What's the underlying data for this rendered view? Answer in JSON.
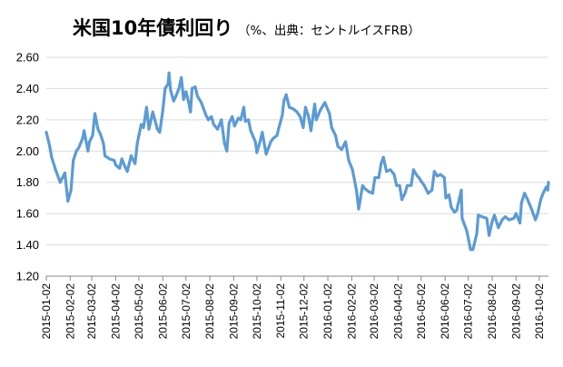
{
  "chart_data": {
    "type": "line",
    "title": "米国10年債利回り",
    "subtitle": "（%、出典：セントルイスFRB）",
    "xlabel": "",
    "ylabel": "",
    "ylim": [
      1.2,
      2.6
    ],
    "yticks": [
      "1.20",
      "1.40",
      "1.60",
      "1.80",
      "2.00",
      "2.20",
      "2.40",
      "2.60"
    ],
    "grid": true,
    "x_start": "2015-01-02",
    "x_end": "2016-10-14",
    "categories": [
      "2015-01-02",
      "2015-02-02",
      "2015-03-02",
      "2015-04-02",
      "2015-05-02",
      "2015-06-02",
      "2015-07-02",
      "2015-08-02",
      "2015-09-02",
      "2015-10-02",
      "2015-11-02",
      "2015-12-02",
      "2016-01-02",
      "2016-02-02",
      "2016-03-02",
      "2016-04-02",
      "2016-05-02",
      "2016-06-02",
      "2016-07-02",
      "2016-08-02",
      "2016-09-02",
      "2016-10-02"
    ],
    "series": [
      {
        "color": "#5b9bd5",
        "points": [
          [
            "2015-01-02",
            2.12
          ],
          [
            "2015-01-06",
            2.04
          ],
          [
            "2015-01-09",
            1.96
          ],
          [
            "2015-01-14",
            1.88
          ],
          [
            "2015-01-20",
            1.8
          ],
          [
            "2015-01-23",
            1.83
          ],
          [
            "2015-01-26",
            1.86
          ],
          [
            "2015-01-30",
            1.68
          ],
          [
            "2015-02-03",
            1.75
          ],
          [
            "2015-02-06",
            1.94
          ],
          [
            "2015-02-10",
            2.0
          ],
          [
            "2015-02-13",
            2.02
          ],
          [
            "2015-02-18",
            2.08
          ],
          [
            "2015-02-20",
            2.13
          ],
          [
            "2015-02-25",
            2.0
          ],
          [
            "2015-02-27",
            2.06
          ],
          [
            "2015-03-03",
            2.1
          ],
          [
            "2015-03-06",
            2.24
          ],
          [
            "2015-03-10",
            2.14
          ],
          [
            "2015-03-13",
            2.11
          ],
          [
            "2015-03-17",
            2.05
          ],
          [
            "2015-03-19",
            1.97
          ],
          [
            "2015-03-25",
            1.95
          ],
          [
            "2015-03-31",
            1.94
          ],
          [
            "2015-04-02",
            1.91
          ],
          [
            "2015-04-07",
            1.89
          ],
          [
            "2015-04-10",
            1.95
          ],
          [
            "2015-04-14",
            1.9
          ],
          [
            "2015-04-17",
            1.87
          ],
          [
            "2015-04-22",
            1.97
          ],
          [
            "2015-04-27",
            1.92
          ],
          [
            "2015-04-30",
            2.05
          ],
          [
            "2015-05-05",
            2.17
          ],
          [
            "2015-05-08",
            2.15
          ],
          [
            "2015-05-12",
            2.28
          ],
          [
            "2015-05-15",
            2.14
          ],
          [
            "2015-05-20",
            2.25
          ],
          [
            "2015-05-26",
            2.14
          ],
          [
            "2015-05-29",
            2.12
          ],
          [
            "2015-06-02",
            2.26
          ],
          [
            "2015-06-05",
            2.4
          ],
          [
            "2015-06-09",
            2.43
          ],
          [
            "2015-06-10",
            2.5
          ],
          [
            "2015-06-12",
            2.39
          ],
          [
            "2015-06-16",
            2.32
          ],
          [
            "2015-06-19",
            2.35
          ],
          [
            "2015-06-23",
            2.4
          ],
          [
            "2015-06-26",
            2.47
          ],
          [
            "2015-06-29",
            2.33
          ],
          [
            "2015-07-02",
            2.38
          ],
          [
            "2015-07-06",
            2.3
          ],
          [
            "2015-07-08",
            2.25
          ],
          [
            "2015-07-10",
            2.4
          ],
          [
            "2015-07-14",
            2.41
          ],
          [
            "2015-07-17",
            2.35
          ],
          [
            "2015-07-22",
            2.31
          ],
          [
            "2015-07-28",
            2.23
          ],
          [
            "2015-07-31",
            2.2
          ],
          [
            "2015-08-04",
            2.22
          ],
          [
            "2015-08-07",
            2.17
          ],
          [
            "2015-08-12",
            2.14
          ],
          [
            "2015-08-17",
            2.2
          ],
          [
            "2015-08-21",
            2.05
          ],
          [
            "2015-08-24",
            2.0
          ],
          [
            "2015-08-27",
            2.18
          ],
          [
            "2015-08-31",
            2.22
          ],
          [
            "2015-09-03",
            2.16
          ],
          [
            "2015-09-08",
            2.21
          ],
          [
            "2015-09-11",
            2.2
          ],
          [
            "2015-09-15",
            2.28
          ],
          [
            "2015-09-17",
            2.19
          ],
          [
            "2015-09-21",
            2.2
          ],
          [
            "2015-09-24",
            2.13
          ],
          [
            "2015-09-30",
            2.06
          ],
          [
            "2015-10-02",
            1.99
          ],
          [
            "2015-10-06",
            2.06
          ],
          [
            "2015-10-09",
            2.12
          ],
          [
            "2015-10-14",
            1.98
          ],
          [
            "2015-10-20",
            2.06
          ],
          [
            "2015-10-23",
            2.08
          ],
          [
            "2015-10-28",
            2.1
          ],
          [
            "2015-10-30",
            2.14
          ],
          [
            "2015-11-04",
            2.23
          ],
          [
            "2015-11-06",
            2.32
          ],
          [
            "2015-11-09",
            2.36
          ],
          [
            "2015-11-13",
            2.28
          ],
          [
            "2015-11-18",
            2.27
          ],
          [
            "2015-11-23",
            2.25
          ],
          [
            "2015-11-27",
            2.22
          ],
          [
            "2015-12-01",
            2.15
          ],
          [
            "2015-12-04",
            2.28
          ],
          [
            "2015-12-08",
            2.22
          ],
          [
            "2015-12-11",
            2.13
          ],
          [
            "2015-12-16",
            2.3
          ],
          [
            "2015-12-18",
            2.2
          ],
          [
            "2015-12-23",
            2.26
          ],
          [
            "2015-12-29",
            2.31
          ],
          [
            "2016-01-04",
            2.24
          ],
          [
            "2016-01-07",
            2.15
          ],
          [
            "2016-01-12",
            2.1
          ],
          [
            "2016-01-15",
            2.03
          ],
          [
            "2016-01-20",
            2.01
          ],
          [
            "2016-01-25",
            2.06
          ],
          [
            "2016-01-29",
            1.94
          ],
          [
            "2016-02-03",
            1.88
          ],
          [
            "2016-02-08",
            1.75
          ],
          [
            "2016-02-11",
            1.63
          ],
          [
            "2016-02-16",
            1.78
          ],
          [
            "2016-02-19",
            1.76
          ],
          [
            "2016-02-24",
            1.74
          ],
          [
            "2016-02-29",
            1.73
          ],
          [
            "2016-03-03",
            1.83
          ],
          [
            "2016-03-08",
            1.83
          ],
          [
            "2016-03-11",
            1.92
          ],
          [
            "2016-03-14",
            1.96
          ],
          [
            "2016-03-18",
            1.87
          ],
          [
            "2016-03-23",
            1.88
          ],
          [
            "2016-03-28",
            1.85
          ],
          [
            "2016-03-31",
            1.78
          ],
          [
            "2016-04-04",
            1.78
          ],
          [
            "2016-04-07",
            1.69
          ],
          [
            "2016-04-11",
            1.73
          ],
          [
            "2016-04-14",
            1.78
          ],
          [
            "2016-04-19",
            1.78
          ],
          [
            "2016-04-22",
            1.88
          ],
          [
            "2016-04-27",
            1.84
          ],
          [
            "2016-04-29",
            1.83
          ],
          [
            "2016-05-03",
            1.8
          ],
          [
            "2016-05-06",
            1.78
          ],
          [
            "2016-05-11",
            1.73
          ],
          [
            "2016-05-16",
            1.75
          ],
          [
            "2016-05-19",
            1.87
          ],
          [
            "2016-05-23",
            1.84
          ],
          [
            "2016-05-27",
            1.85
          ],
          [
            "2016-06-01",
            1.83
          ],
          [
            "2016-06-03",
            1.7
          ],
          [
            "2016-06-07",
            1.72
          ],
          [
            "2016-06-10",
            1.64
          ],
          [
            "2016-06-14",
            1.61
          ],
          [
            "2016-06-17",
            1.62
          ],
          [
            "2016-06-23",
            1.75
          ],
          [
            "2016-06-24",
            1.57
          ],
          [
            "2016-06-30",
            1.49
          ],
          [
            "2016-07-05",
            1.37
          ],
          [
            "2016-07-08",
            1.37
          ],
          [
            "2016-07-13",
            1.47
          ],
          [
            "2016-07-15",
            1.59
          ],
          [
            "2016-07-20",
            1.58
          ],
          [
            "2016-07-26",
            1.57
          ],
          [
            "2016-07-29",
            1.46
          ],
          [
            "2016-08-02",
            1.55
          ],
          [
            "2016-08-05",
            1.59
          ],
          [
            "2016-08-10",
            1.51
          ],
          [
            "2016-08-15",
            1.56
          ],
          [
            "2016-08-19",
            1.58
          ],
          [
            "2016-08-24",
            1.56
          ],
          [
            "2016-08-30",
            1.57
          ],
          [
            "2016-09-02",
            1.6
          ],
          [
            "2016-09-07",
            1.54
          ],
          [
            "2016-09-09",
            1.67
          ],
          [
            "2016-09-13",
            1.73
          ],
          [
            "2016-09-16",
            1.7
          ],
          [
            "2016-09-22",
            1.63
          ],
          [
            "2016-09-27",
            1.56
          ],
          [
            "2016-09-30",
            1.6
          ],
          [
            "2016-10-04",
            1.69
          ],
          [
            "2016-10-07",
            1.73
          ],
          [
            "2016-10-11",
            1.77
          ],
          [
            "2016-10-13",
            1.75
          ],
          [
            "2016-10-14",
            1.8
          ]
        ]
      }
    ]
  }
}
